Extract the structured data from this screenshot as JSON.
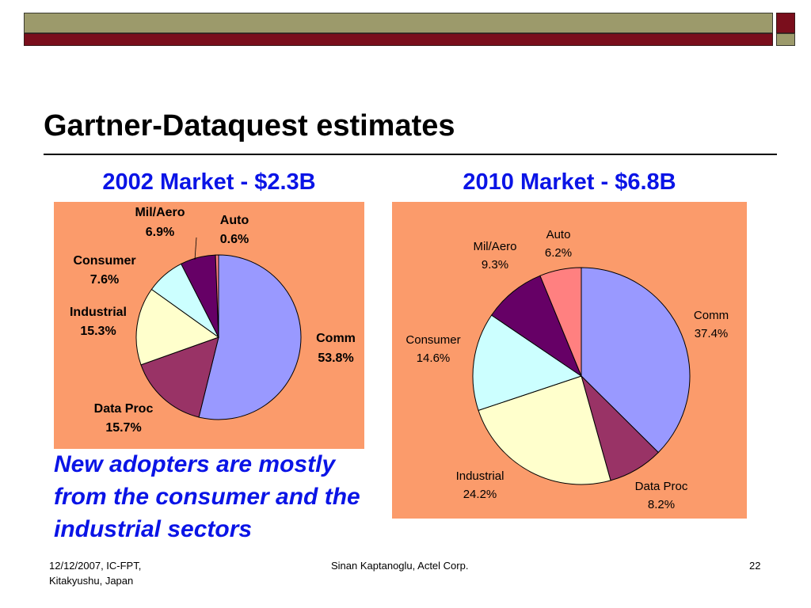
{
  "slide": {
    "title": "Gartner-Dataquest estimates",
    "note": "New adopters are mostly from the consumer and the industrial sectors",
    "footer": {
      "left_line1": "12/12/2007,  IC-FPT,",
      "left_line2": "Kitakyushu, Japan",
      "center": "Sinan Kaptanoglu, Actel Corp.",
      "page_number": "22"
    }
  },
  "colors": {
    "panel": "#fb9b6b",
    "title_blue": "#0a14e6",
    "bar_olive": "#9c9a6b",
    "bar_red": "#7a0e1c"
  },
  "chart_data": [
    {
      "type": "pie",
      "title": "2002 Market - $2.3B",
      "start_angle_deg": 0,
      "label_style": "bold",
      "slices": [
        {
          "label": "Comm",
          "value": 53.8,
          "value_label": "53.8%",
          "color": "#9999ff"
        },
        {
          "label": "Data Proc",
          "value": 15.7,
          "value_label": "15.7%",
          "color": "#993366"
        },
        {
          "label": "Industrial",
          "value": 15.3,
          "value_label": "15.3%",
          "color": "#ffffcc"
        },
        {
          "label": "Consumer",
          "value": 7.6,
          "value_label": "7.6%",
          "color": "#ccffff"
        },
        {
          "label": "Mil/Aero",
          "value": 6.9,
          "value_label": "6.9%",
          "color": "#660066"
        },
        {
          "label": "Auto",
          "value": 0.6,
          "value_label": "0.6%",
          "color": "#ff8080"
        }
      ]
    },
    {
      "type": "pie",
      "title": "2010 Market - $6.8B",
      "start_angle_deg": 0,
      "label_style": "normal",
      "slices": [
        {
          "label": "Comm",
          "value": 37.4,
          "value_label": "37.4%",
          "color": "#9999ff"
        },
        {
          "label": "Data Proc",
          "value": 8.2,
          "value_label": "8.2%",
          "color": "#993366"
        },
        {
          "label": "Industrial",
          "value": 24.2,
          "value_label": "24.2%",
          "color": "#ffffcc"
        },
        {
          "label": "Consumer",
          "value": 14.6,
          "value_label": "14.6%",
          "color": "#ccffff"
        },
        {
          "label": "Mil/Aero",
          "value": 9.3,
          "value_label": "9.3%",
          "color": "#660066"
        },
        {
          "label": "Auto",
          "value": 6.2,
          "value_label": "6.2%",
          "color": "#ff8080"
        }
      ]
    }
  ]
}
